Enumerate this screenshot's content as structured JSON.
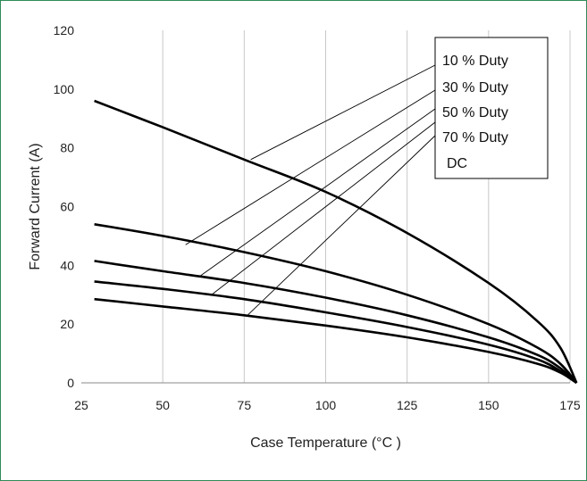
{
  "chart_data": {
    "type": "line",
    "xlabel": "Case Temperature (°C )",
    "ylabel": "Forward Current (A)",
    "xlim": [
      25,
      175
    ],
    "ylim": [
      0,
      120
    ],
    "xticks": [
      25,
      50,
      75,
      100,
      125,
      150,
      175
    ],
    "yticks": [
      0,
      20,
      40,
      60,
      80,
      100,
      120
    ],
    "grid": "vertical",
    "legend_position": "top-right",
    "colors": {
      "series": "#000000",
      "grid": "#c8c8c8",
      "frame": "#2e8b57"
    },
    "series": [
      {
        "name": "10 % Duty",
        "x": [
          29,
          50,
          75,
          100,
          125,
          150,
          165,
          172,
          177
        ],
        "y": [
          96,
          87,
          76,
          65,
          51,
          34,
          21,
          12,
          0
        ]
      },
      {
        "name": "30 % Duty",
        "x": [
          29,
          50,
          75,
          100,
          125,
          150,
          165,
          172,
          177
        ],
        "y": [
          54,
          50,
          44.5,
          38,
          30,
          20,
          12,
          6.5,
          0
        ]
      },
      {
        "name": "50 % Duty",
        "x": [
          29,
          50,
          75,
          100,
          125,
          150,
          165,
          172,
          177
        ],
        "y": [
          41.5,
          38,
          34,
          29,
          23,
          15.5,
          9.5,
          5,
          0
        ]
      },
      {
        "name": "70 % Duty",
        "x": [
          29,
          50,
          75,
          100,
          125,
          150,
          165,
          172,
          177
        ],
        "y": [
          34.5,
          32,
          28.5,
          24,
          19,
          13,
          8,
          4,
          0
        ]
      },
      {
        "name": "DC",
        "x": [
          29,
          50,
          75,
          100,
          125,
          150,
          165,
          172,
          177
        ],
        "y": [
          28.5,
          26,
          23,
          19.5,
          15.5,
          10.5,
          6.5,
          3.5,
          0
        ]
      }
    ],
    "legend_pointers": [
      {
        "name": "10 % Duty",
        "x": 77,
        "y": 76
      },
      {
        "name": "30 % Duty",
        "x": 57,
        "y": 47
      },
      {
        "name": "50 % Duty",
        "x": 61,
        "y": 36
      },
      {
        "name": "70 % Duty",
        "x": 65,
        "y": 30
      },
      {
        "name": "DC",
        "x": 76,
        "y": 23
      }
    ]
  }
}
